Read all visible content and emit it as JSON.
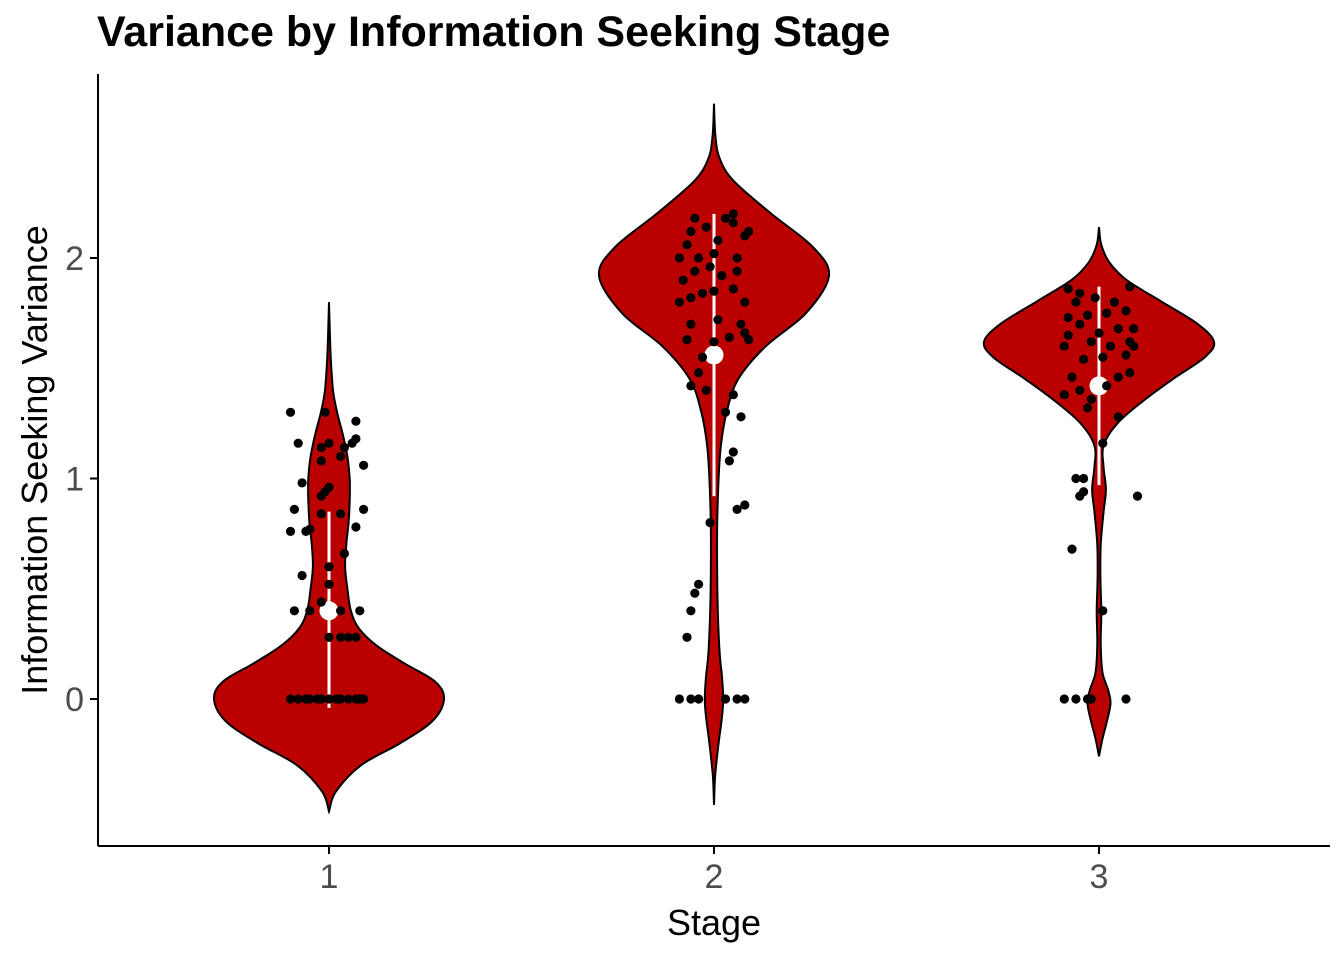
{
  "chart_data": {
    "type": "violin",
    "title": "Variance by Information Seeking Stage",
    "xlabel": "Stage",
    "ylabel": "Information Seeking Variance",
    "categories": [
      "1",
      "2",
      "3"
    ],
    "y_ticks": [
      0,
      1,
      2
    ],
    "ylim": [
      -0.65,
      2.8
    ],
    "grid": false,
    "legend": "none",
    "colors": {
      "violin_fill": "#bb0000",
      "violin_stroke": "#000000",
      "points": "#000000",
      "summary": "#ffffff"
    },
    "groups": [
      {
        "category": "1",
        "mean": 0.4,
        "sd_range": [
          -0.04,
          0.85
        ],
        "density": [
          [
            -0.51,
            0.0
          ],
          [
            -0.42,
            0.06
          ],
          [
            -0.3,
            0.28
          ],
          [
            -0.2,
            0.62
          ],
          [
            -0.1,
            0.9
          ],
          [
            0.0,
            1.0
          ],
          [
            0.08,
            0.92
          ],
          [
            0.16,
            0.66
          ],
          [
            0.24,
            0.42
          ],
          [
            0.32,
            0.26
          ],
          [
            0.4,
            0.19
          ],
          [
            0.5,
            0.16
          ],
          [
            0.6,
            0.14
          ],
          [
            0.7,
            0.15
          ],
          [
            0.8,
            0.17
          ],
          [
            0.9,
            0.18
          ],
          [
            1.0,
            0.18
          ],
          [
            1.1,
            0.16
          ],
          [
            1.2,
            0.12
          ],
          [
            1.3,
            0.07
          ],
          [
            1.4,
            0.035
          ],
          [
            1.55,
            0.015
          ],
          [
            1.7,
            0.005
          ],
          [
            1.8,
            0.0
          ]
        ],
        "points": [
          [
            -0.1,
            0.0
          ],
          [
            -0.08,
            0.0
          ],
          [
            -0.06,
            0.0
          ],
          [
            -0.05,
            0.0
          ],
          [
            -0.03,
            0.0
          ],
          [
            -0.02,
            0.0
          ],
          [
            0.0,
            0.0
          ],
          [
            0.02,
            0.0
          ],
          [
            0.03,
            0.0
          ],
          [
            0.05,
            0.0
          ],
          [
            0.07,
            0.0
          ],
          [
            0.08,
            0.0
          ],
          [
            0.09,
            0.0
          ],
          [
            0.0,
            0.28
          ],
          [
            0.03,
            0.28
          ],
          [
            0.05,
            0.28
          ],
          [
            0.07,
            0.28
          ],
          [
            -0.09,
            0.4
          ],
          [
            -0.05,
            0.4
          ],
          [
            -0.02,
            0.44
          ],
          [
            0.03,
            0.4
          ],
          [
            0.08,
            0.4
          ],
          [
            0.0,
            0.52
          ],
          [
            -0.07,
            0.56
          ],
          [
            0.0,
            0.6
          ],
          [
            0.04,
            0.66
          ],
          [
            -0.1,
            0.76
          ],
          [
            -0.06,
            0.76
          ],
          [
            -0.05,
            0.77
          ],
          [
            0.07,
            0.78
          ],
          [
            -0.02,
            0.84
          ],
          [
            0.03,
            0.84
          ],
          [
            0.09,
            0.86
          ],
          [
            -0.09,
            0.86
          ],
          [
            -0.02,
            0.92
          ],
          [
            -0.01,
            0.94
          ],
          [
            0.0,
            0.96
          ],
          [
            -0.07,
            0.98
          ],
          [
            0.09,
            1.06
          ],
          [
            -0.02,
            1.08
          ],
          [
            0.03,
            1.1
          ],
          [
            -0.02,
            1.14
          ],
          [
            0.0,
            1.16
          ],
          [
            0.06,
            1.16
          ],
          [
            0.07,
            1.18
          ],
          [
            0.04,
            1.14
          ],
          [
            -0.08,
            1.16
          ],
          [
            0.07,
            1.26
          ],
          [
            -0.1,
            1.3
          ],
          [
            -0.01,
            1.3
          ]
        ]
      },
      {
        "category": "2",
        "mean": 1.56,
        "sd_range": [
          0.92,
          2.2
        ],
        "density": [
          [
            -0.48,
            0.0
          ],
          [
            -0.35,
            0.01
          ],
          [
            -0.2,
            0.04
          ],
          [
            -0.08,
            0.07
          ],
          [
            0.0,
            0.08
          ],
          [
            0.1,
            0.07
          ],
          [
            0.2,
            0.05
          ],
          [
            0.4,
            0.033
          ],
          [
            0.6,
            0.027
          ],
          [
            0.8,
            0.028
          ],
          [
            1.0,
            0.04
          ],
          [
            1.15,
            0.06
          ],
          [
            1.3,
            0.11
          ],
          [
            1.45,
            0.21
          ],
          [
            1.6,
            0.45
          ],
          [
            1.75,
            0.8
          ],
          [
            1.92,
            1.0
          ],
          [
            2.05,
            0.86
          ],
          [
            2.2,
            0.5
          ],
          [
            2.35,
            0.17
          ],
          [
            2.45,
            0.05
          ],
          [
            2.55,
            0.013
          ],
          [
            2.7,
            0.0
          ]
        ],
        "points": [
          [
            -0.09,
            0.0
          ],
          [
            -0.06,
            0.0
          ],
          [
            -0.04,
            0.0
          ],
          [
            0.03,
            0.0
          ],
          [
            0.06,
            0.0
          ],
          [
            0.08,
            0.0
          ],
          [
            -0.07,
            0.28
          ],
          [
            -0.06,
            0.4
          ],
          [
            -0.05,
            0.48
          ],
          [
            -0.04,
            0.52
          ],
          [
            -0.01,
            0.8
          ],
          [
            0.06,
            0.86
          ],
          [
            0.08,
            0.88
          ],
          [
            0.04,
            1.08
          ],
          [
            0.05,
            1.12
          ],
          [
            0.07,
            1.28
          ],
          [
            0.03,
            1.3
          ],
          [
            -0.02,
            1.4
          ],
          [
            -0.06,
            1.42
          ],
          [
            -0.04,
            1.48
          ],
          [
            -0.03,
            1.55
          ],
          [
            0.05,
            1.38
          ],
          [
            -0.07,
            1.63
          ],
          [
            0.0,
            1.62
          ],
          [
            0.04,
            1.64
          ],
          [
            0.08,
            1.66
          ],
          [
            0.09,
            1.63
          ],
          [
            -0.06,
            1.7
          ],
          [
            0.01,
            1.72
          ],
          [
            0.07,
            1.7
          ],
          [
            -0.09,
            1.8
          ],
          [
            -0.06,
            1.82
          ],
          [
            -0.03,
            1.84
          ],
          [
            0.0,
            1.85
          ],
          [
            0.05,
            1.86
          ],
          [
            0.08,
            1.8
          ],
          [
            -0.08,
            1.9
          ],
          [
            -0.05,
            1.94
          ],
          [
            -0.01,
            1.96
          ],
          [
            0.02,
            1.92
          ],
          [
            0.06,
            1.94
          ],
          [
            -0.09,
            2.0
          ],
          [
            -0.04,
            2.0
          ],
          [
            0.0,
            2.02
          ],
          [
            0.06,
            2.0
          ],
          [
            -0.07,
            2.06
          ],
          [
            0.01,
            2.08
          ],
          [
            0.08,
            2.1
          ],
          [
            0.09,
            2.12
          ],
          [
            -0.06,
            2.12
          ],
          [
            -0.02,
            2.14
          ],
          [
            0.05,
            2.16
          ],
          [
            0.03,
            2.18
          ],
          [
            -0.05,
            2.18
          ],
          [
            0.05,
            2.2
          ]
        ]
      },
      {
        "category": "3",
        "mean": 1.42,
        "sd_range": [
          0.97,
          1.87
        ],
        "density": [
          [
            -0.26,
            0.0
          ],
          [
            -0.18,
            0.03
          ],
          [
            -0.1,
            0.07
          ],
          [
            -0.02,
            0.1
          ],
          [
            0.04,
            0.08
          ],
          [
            0.12,
            0.03
          ],
          [
            0.25,
            0.015
          ],
          [
            0.4,
            0.02
          ],
          [
            0.55,
            0.012
          ],
          [
            0.7,
            0.015
          ],
          [
            0.85,
            0.04
          ],
          [
            0.95,
            0.06
          ],
          [
            1.05,
            0.04
          ],
          [
            1.15,
            0.04
          ],
          [
            1.25,
            0.16
          ],
          [
            1.35,
            0.38
          ],
          [
            1.45,
            0.64
          ],
          [
            1.55,
            0.92
          ],
          [
            1.62,
            1.0
          ],
          [
            1.7,
            0.86
          ],
          [
            1.8,
            0.55
          ],
          [
            1.9,
            0.24
          ],
          [
            1.98,
            0.09
          ],
          [
            2.06,
            0.02
          ],
          [
            2.14,
            0.0
          ]
        ],
        "points": [
          [
            -0.09,
            0.0
          ],
          [
            -0.06,
            0.0
          ],
          [
            -0.03,
            0.0
          ],
          [
            -0.02,
            0.0
          ],
          [
            0.07,
            0.0
          ],
          [
            -0.07,
            0.68
          ],
          [
            0.01,
            0.4
          ],
          [
            -0.05,
            0.92
          ],
          [
            -0.04,
            0.94
          ],
          [
            0.1,
            0.92
          ],
          [
            -0.06,
            1.0
          ],
          [
            -0.04,
            1.0
          ],
          [
            0.01,
            1.16
          ],
          [
            -0.03,
            1.32
          ],
          [
            0.05,
            1.28
          ],
          [
            -0.09,
            1.38
          ],
          [
            -0.05,
            1.4
          ],
          [
            -0.02,
            1.36
          ],
          [
            0.02,
            1.42
          ],
          [
            0.05,
            1.46
          ],
          [
            -0.07,
            1.46
          ],
          [
            0.08,
            1.48
          ],
          [
            -0.04,
            1.54
          ],
          [
            0.01,
            1.55
          ],
          [
            0.07,
            1.56
          ],
          [
            -0.09,
            1.6
          ],
          [
            -0.02,
            1.62
          ],
          [
            0.03,
            1.6
          ],
          [
            0.08,
            1.62
          ],
          [
            0.09,
            1.6
          ],
          [
            -0.08,
            1.65
          ],
          [
            0.0,
            1.66
          ],
          [
            0.05,
            1.68
          ],
          [
            0.09,
            1.68
          ],
          [
            -0.05,
            1.7
          ],
          [
            -0.08,
            1.73
          ],
          [
            -0.03,
            1.74
          ],
          [
            0.02,
            1.75
          ],
          [
            0.07,
            1.76
          ],
          [
            -0.06,
            1.8
          ],
          [
            -0.01,
            1.82
          ],
          [
            0.04,
            1.8
          ],
          [
            -0.05,
            1.84
          ],
          [
            -0.08,
            1.86
          ],
          [
            0.08,
            1.87
          ]
        ]
      }
    ]
  }
}
